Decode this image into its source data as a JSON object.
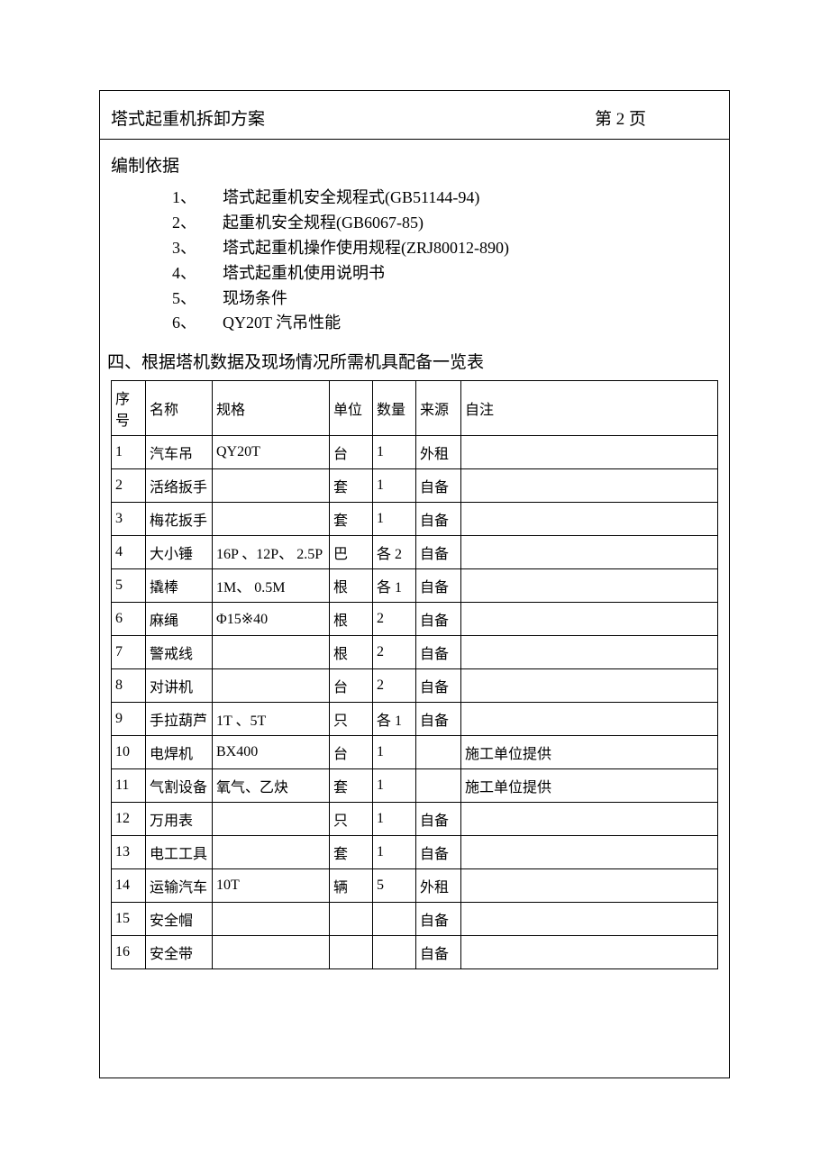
{
  "header": {
    "title": "塔式起重机拆卸方案",
    "page_label": "第 2 页"
  },
  "section_basis": {
    "title": "编制依据",
    "items": [
      {
        "num": "1、",
        "text": "塔式起重机安全规程式(GB51144-94)"
      },
      {
        "num": "2、",
        "text": "起重机安全规程(GB6067-85)"
      },
      {
        "num": "3、",
        "text": "塔式起重机操作使用规程(ZRJ80012-890)"
      },
      {
        "num": "4、",
        "text": "塔式起重机使用说明书"
      },
      {
        "num": "5、",
        "text": "现场条件"
      },
      {
        "num": "6、",
        "text": "QY20T 汽吊性能"
      }
    ]
  },
  "section_table": {
    "heading": "四、根据塔机数据及现场情况所需机具配备一览表",
    "columns": [
      "序号",
      "名称",
      "规格",
      "单位",
      "数量",
      "来源",
      "自注"
    ],
    "rows": [
      [
        "1",
        "汽车吊",
        "QY20T",
        "台",
        "1",
        "外租",
        ""
      ],
      [
        "2",
        "活络扳手",
        "",
        "套",
        "1",
        "自备",
        ""
      ],
      [
        "3",
        "梅花扳手",
        "",
        "套",
        "1",
        "自备",
        ""
      ],
      [
        "4",
        "大小锤",
        "16P 、12P、 2.5P",
        "巴",
        "各 2",
        "自备",
        ""
      ],
      [
        "5",
        "撬棒",
        "1M、 0.5M",
        "根",
        "各 1",
        "自备",
        ""
      ],
      [
        "6",
        "麻绳",
        "Φ15※40",
        "根",
        "2",
        "自备",
        ""
      ],
      [
        "7",
        "警戒线",
        "",
        "根",
        "2",
        "自备",
        ""
      ],
      [
        "8",
        "对讲机",
        "",
        "台",
        "2",
        "自备",
        ""
      ],
      [
        "9",
        "手拉葫芦",
        "1T 、5T",
        "只",
        "各 1",
        "自备",
        ""
      ],
      [
        "10",
        "电焊机",
        "BX400",
        "台",
        "1",
        "",
        "施工单位提供"
      ],
      [
        "11",
        "气割设备",
        "氧气、乙炔",
        "套",
        "1",
        "",
        "施工单位提供"
      ],
      [
        "12",
        "万用表",
        "",
        "只",
        "1",
        "自备",
        ""
      ],
      [
        "13",
        "电工工具",
        "",
        "套",
        "1",
        "自备",
        ""
      ],
      [
        "14",
        "运输汽车",
        "10T",
        "辆",
        "5",
        "外租",
        ""
      ],
      [
        "15",
        "安全帽",
        "",
        "",
        "",
        "自备",
        ""
      ],
      [
        "16",
        "安全带",
        "",
        "",
        "",
        "自备",
        ""
      ]
    ]
  }
}
